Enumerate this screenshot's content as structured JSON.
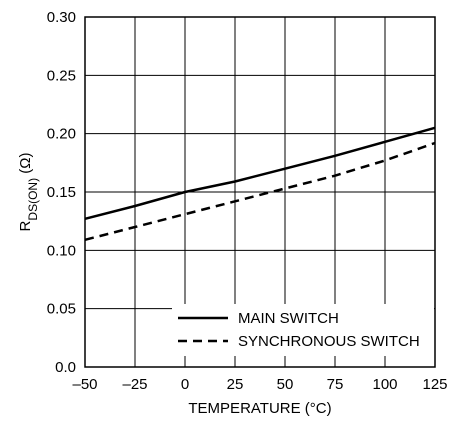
{
  "chart_data": {
    "type": "line",
    "title": "",
    "xlabel": "TEMPERATURE (°C)",
    "ylabel": {
      "prefix": "R",
      "sub": "DS(ON)",
      "suffix": " (Ω)"
    },
    "xlim": [
      -50,
      125
    ],
    "ylim": [
      0,
      0.3
    ],
    "x_ticks": [
      -50,
      -25,
      0,
      25,
      50,
      75,
      100,
      125
    ],
    "x_tick_labels": [
      "–50",
      "–25",
      "0",
      "25",
      "50",
      "75",
      "100",
      "125"
    ],
    "y_ticks": [
      0,
      0.05,
      0.1,
      0.15,
      0.2,
      0.25,
      0.3
    ],
    "y_tick_labels": [
      "0.0",
      "0.05",
      "0.10",
      "0.15",
      "0.20",
      "0.25",
      "0.30"
    ],
    "grid": true,
    "legend_position": "bottom-right",
    "series": [
      {
        "name": "MAIN SWITCH",
        "style": "solid",
        "x": [
          -50,
          -25,
          0,
          25,
          50,
          75,
          100,
          125
        ],
        "values": [
          0.127,
          0.138,
          0.15,
          0.159,
          0.17,
          0.181,
          0.193,
          0.205
        ]
      },
      {
        "name": "SYNCHRONOUS SWITCH",
        "style": "dashed",
        "x": [
          -50,
          -25,
          0,
          25,
          50,
          75,
          100,
          125
        ],
        "values": [
          0.109,
          0.12,
          0.131,
          0.142,
          0.153,
          0.164,
          0.177,
          0.192
        ]
      }
    ]
  }
}
